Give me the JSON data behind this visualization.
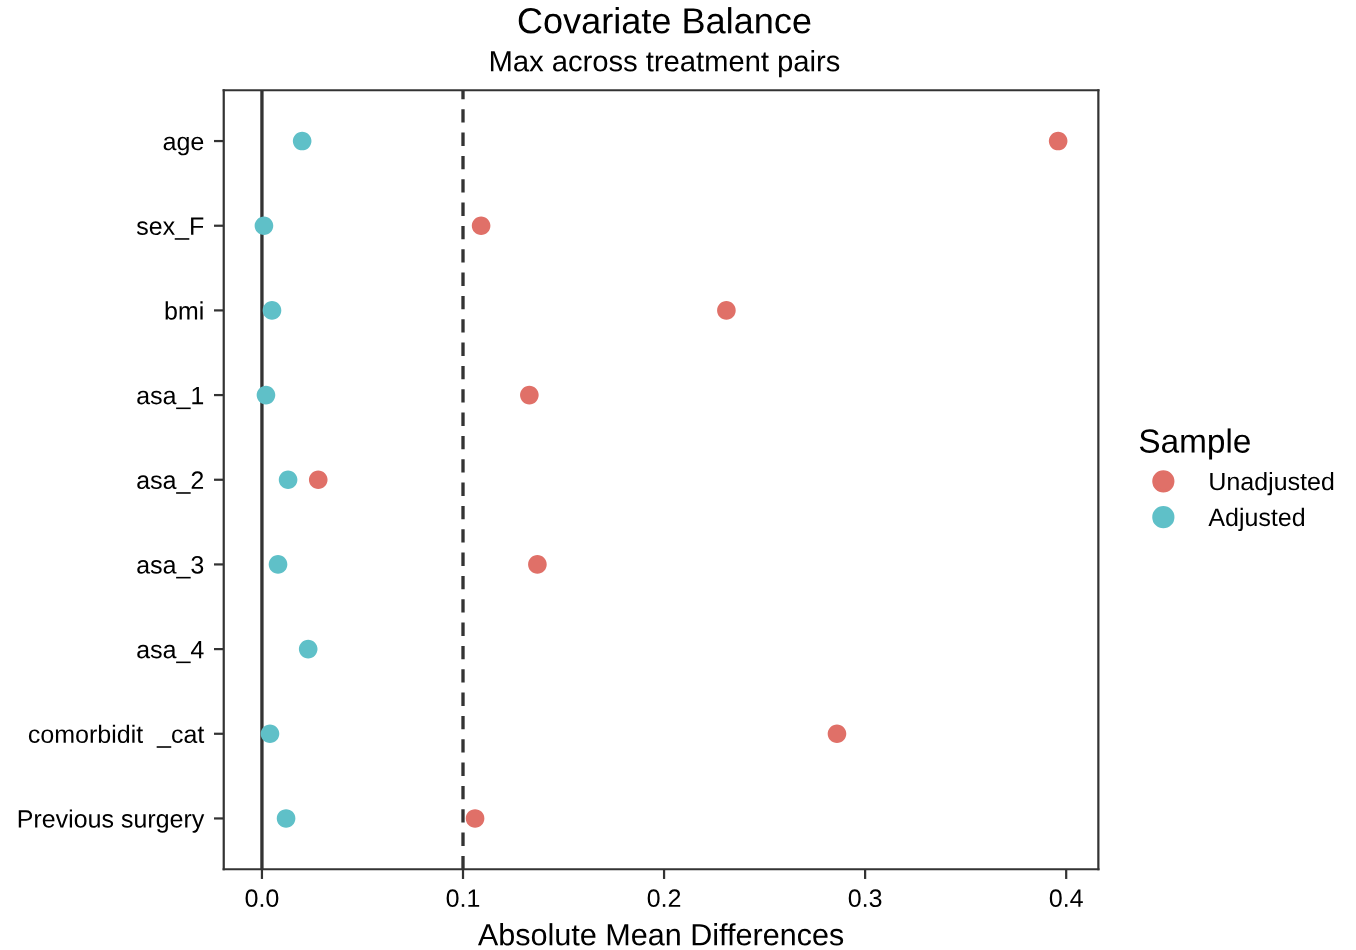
{
  "chart_data": {
    "type": "scatter",
    "title": "Covariate Balance",
    "subtitle": "Max across treatment pairs",
    "xlabel": "Absolute Mean Differences",
    "orientation": "horizontal",
    "categories": [
      "age",
      "sex_F",
      "bmi",
      "asa_1",
      "asa_2",
      "asa_3",
      "asa_4",
      "comorbidit  _cat",
      "Previous surgery"
    ],
    "series": [
      {
        "name": "Unadjusted",
        "color": "#e07068",
        "values": [
          0.396,
          0.109,
          0.231,
          0.133,
          0.028,
          0.137,
          null,
          0.286,
          0.106
        ]
      },
      {
        "name": "Adjusted",
        "color": "#5fc0c8",
        "values": [
          0.02,
          0.001,
          0.005,
          0.002,
          0.013,
          0.008,
          0.023,
          0.004,
          0.012
        ]
      }
    ],
    "xlim": [
      -0.019,
      0.416
    ],
    "xticks": [
      {
        "value": 0,
        "label": "0.0"
      },
      0.1,
      0.2,
      0.3,
      0.4
    ],
    "ref_lines": [
      {
        "axis": "x",
        "value": 0,
        "color": "#333333",
        "line_style": "solid"
      },
      {
        "axis": "x",
        "value": 0.1,
        "color": "#333333",
        "line_style": "dashed"
      }
    ],
    "legend": "right",
    "legend_title": "Sample",
    "marker": "circle",
    "grid": false
  }
}
